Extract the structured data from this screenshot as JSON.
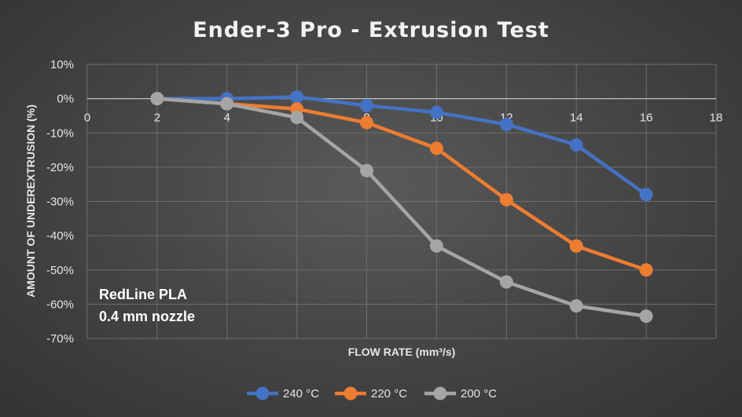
{
  "chart_data": {
    "type": "scatter",
    "title": "Ender-3 Pro - Extrusion Test",
    "xlabel": "FLOW RATE (mm³/s)",
    "ylabel": "AMOUNT OF UNDEREXTRUSION (%)",
    "xlim": [
      0,
      18
    ],
    "ylim": [
      -70,
      10
    ],
    "x_ticks": [
      0,
      2,
      4,
      6,
      8,
      10,
      12,
      14,
      16,
      18
    ],
    "y_ticks": [
      10,
      0,
      -10,
      -20,
      -30,
      -40,
      -50,
      -60,
      -70
    ],
    "y_tick_labels": [
      "10%",
      "0%",
      "-10%",
      "-20%",
      "-30%",
      "-40%",
      "-50%",
      "-60%",
      "-70%"
    ],
    "grid": true,
    "legend_position": "bottom",
    "annotations": [
      "RedLine PLA",
      "0.4 mm nozzle"
    ],
    "x": [
      2,
      4,
      6,
      8,
      10,
      12,
      14,
      16
    ],
    "series": [
      {
        "name": "240 °C",
        "color": "#4472c4",
        "values": [
          0,
          0,
          0.5,
          -2,
          -4,
          -7.5,
          -13.5,
          -28
        ]
      },
      {
        "name": "220 °C",
        "color": "#ed7d31",
        "values": [
          0,
          -1.5,
          -3,
          -7,
          -14.5,
          -29.5,
          -43,
          -50
        ]
      },
      {
        "name": "200 °C",
        "color": "#a5a5a5",
        "values": [
          0,
          -1.5,
          -5.5,
          -21,
          -43,
          -53.5,
          -60.5,
          -63.5
        ]
      }
    ]
  }
}
